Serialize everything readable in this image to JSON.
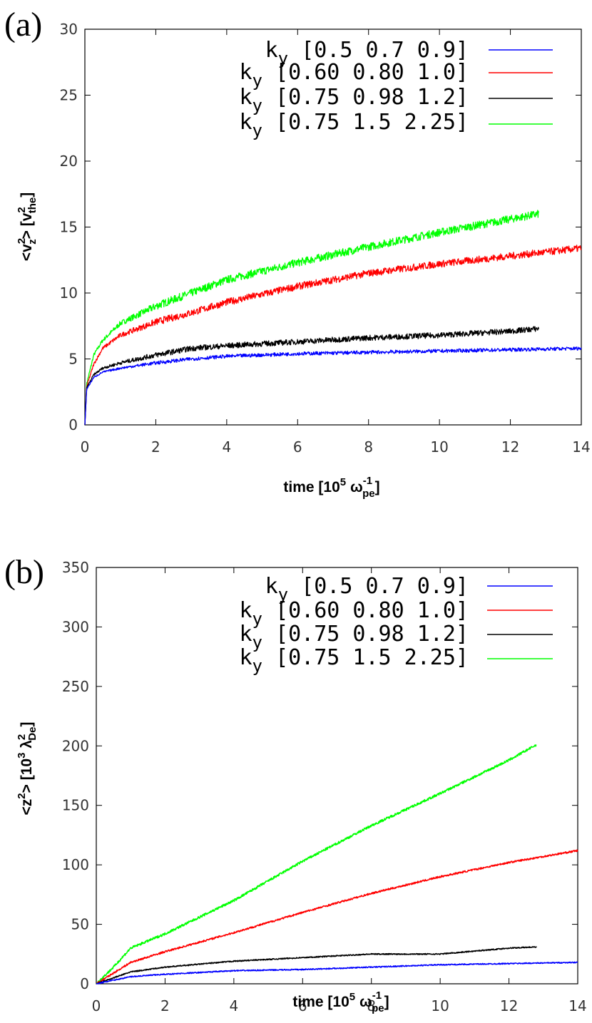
{
  "chart_data": [
    {
      "type": "line",
      "panel_label": "(a)",
      "xlabel": {
        "prefix": "time [10",
        "sup": "5",
        "mid": " ω",
        "sub": "pe",
        "sup2": "-1",
        "suffix": "]"
      },
      "ylabel": {
        "prefix": "<v",
        "sup": "2",
        "sub": "z",
        "mid": "> [v",
        "sup2": "2",
        "sub2": "the",
        "suffix": "]"
      },
      "xlim": [
        0,
        14
      ],
      "ylim": [
        0,
        30
      ],
      "xticks": [
        "0",
        "2",
        "4",
        "6",
        "8",
        "10",
        "12",
        "14"
      ],
      "yticks": [
        "0",
        "5",
        "10",
        "15",
        "20",
        "25",
        "30"
      ],
      "noise_scale": 0.6,
      "series": [
        {
          "name": "k",
          "sub": "y",
          "bracket": "[0.5 0.7 0.9]",
          "color": "#0000ff",
          "x": [
            0,
            0.05,
            0.25,
            0.5,
            1,
            2,
            3,
            4,
            6,
            8,
            10,
            12,
            14
          ],
          "y": [
            0,
            2.7,
            3.6,
            4.0,
            4.3,
            4.7,
            5.0,
            5.2,
            5.4,
            5.5,
            5.6,
            5.7,
            5.8
          ]
        },
        {
          "name": "k",
          "sub": "y",
          "bracket": "[0.60 0.80 1.0]",
          "color": "#ff0000",
          "x": [
            0,
            0.05,
            0.25,
            0.5,
            1,
            2,
            3,
            4,
            6,
            8,
            10,
            12,
            14
          ],
          "y": [
            0,
            2.9,
            4.6,
            5.8,
            6.8,
            7.8,
            8.5,
            9.3,
            10.5,
            11.5,
            12.2,
            12.8,
            13.4
          ]
        },
        {
          "name": "k",
          "sub": "y",
          "bracket": "[0.75 0.98 1.2]",
          "color": "#000000",
          "x": [
            0,
            0.05,
            0.25,
            0.5,
            1,
            2,
            3,
            4,
            6,
            8,
            10,
            12,
            12.8
          ],
          "y": [
            0,
            2.8,
            3.8,
            4.3,
            4.7,
            5.3,
            5.8,
            6.0,
            6.3,
            6.6,
            6.8,
            7.1,
            7.3
          ]
        },
        {
          "name": "k",
          "sub": "y",
          "bracket": "[0.75 1.5 2.25]",
          "color": "#00ff00",
          "x": [
            0,
            0.05,
            0.25,
            0.5,
            1,
            2,
            3,
            4,
            6,
            8,
            10,
            12,
            12.8
          ],
          "y": [
            0,
            3.1,
            5.3,
            6.4,
            7.7,
            9.0,
            10.0,
            11.0,
            12.3,
            13.5,
            14.6,
            15.6,
            16.0
          ]
        }
      ]
    },
    {
      "type": "line",
      "panel_label": "(b)",
      "xlabel": {
        "prefix": "time [10",
        "sup": "5",
        "mid": " ω",
        "sub": "pe",
        "sup2": "-1",
        "suffix": "]"
      },
      "ylabel": {
        "prefix": "<z",
        "sup": "2",
        "mid": "> [10",
        "sup2": "3",
        "mid2": " λ",
        "sup3": "2",
        "sub3": "De",
        "suffix": "]"
      },
      "xlim": [
        0,
        14
      ],
      "ylim": [
        0,
        350
      ],
      "xticks": [
        "0",
        "2",
        "4",
        "6",
        "8",
        "10",
        "12",
        "14"
      ],
      "yticks": [
        "0",
        "50",
        "100",
        "150",
        "200",
        "250",
        "300",
        "350"
      ],
      "noise_scale": 0.9,
      "series": [
        {
          "name": "k",
          "sub": "y",
          "bracket": "[0.5 0.7 0.9]",
          "color": "#0000ff",
          "x": [
            0,
            1,
            2,
            4,
            6,
            8,
            10,
            12,
            14
          ],
          "y": [
            0,
            6,
            8,
            11,
            12,
            14,
            16,
            17,
            18
          ]
        },
        {
          "name": "k",
          "sub": "y",
          "bracket": "[0.60 0.80 1.0]",
          "color": "#ff0000",
          "x": [
            0,
            1,
            2,
            3,
            4,
            6,
            8,
            10,
            12,
            14
          ],
          "y": [
            0,
            18,
            27,
            35,
            43,
            60,
            76,
            90,
            102,
            112
          ]
        },
        {
          "name": "k",
          "sub": "y",
          "bracket": "[0.75 0.98 1.2]",
          "color": "#000000",
          "x": [
            0,
            1,
            2,
            4,
            6,
            8,
            10,
            12,
            12.8
          ],
          "y": [
            0,
            10,
            14,
            19,
            22,
            25,
            25,
            30,
            31
          ]
        },
        {
          "name": "k",
          "sub": "y",
          "bracket": "[0.75 1.5 2.25]",
          "color": "#00ff00",
          "x": [
            0,
            0.5,
            1,
            2,
            4,
            6,
            8,
            10,
            12,
            12.8
          ],
          "y": [
            0,
            14,
            30,
            42,
            70,
            103,
            133,
            160,
            188,
            201
          ]
        }
      ]
    }
  ]
}
